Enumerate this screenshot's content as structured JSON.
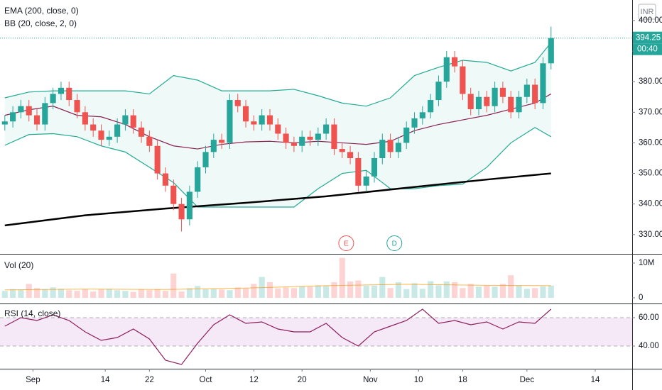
{
  "chart_data": {
    "type": "candlestick",
    "currency": "INR",
    "last_price": 394.25,
    "countdown": "00:40",
    "up_color": "#26a69a",
    "down_color": "#ef5350",
    "xlim": [
      -0.6,
      78.1
    ],
    "xticks": [
      {
        "value": 3.5,
        "label": "Sep"
      },
      {
        "value": 12.5,
        "label": "14"
      },
      {
        "value": 18,
        "label": "22"
      },
      {
        "value": 25,
        "label": "Oct"
      },
      {
        "value": 31,
        "label": "12"
      },
      {
        "value": 37,
        "label": "20"
      },
      {
        "value": 45.5,
        "label": "Nov"
      },
      {
        "value": 51.5,
        "label": "10"
      },
      {
        "value": 57,
        "label": "18"
      },
      {
        "value": 65,
        "label": "Dec"
      },
      {
        "value": 73.5,
        "label": "14"
      }
    ],
    "ylim": [
      323.7,
      406.7
    ],
    "yticks": [
      {
        "value": 330,
        "label": "330.00"
      },
      {
        "value": 340,
        "label": "340.00"
      },
      {
        "value": 350,
        "label": "350.00"
      },
      {
        "value": 360,
        "label": "360.00"
      },
      {
        "value": 370,
        "label": "370.00"
      },
      {
        "value": 380,
        "label": "380.00"
      },
      {
        "value": 390,
        "label": "390.00"
      },
      {
        "value": 400,
        "label": "400.00"
      }
    ],
    "x": [
      0,
      1,
      2,
      3,
      4,
      5,
      6,
      7,
      8,
      9,
      10,
      11,
      12,
      13,
      14,
      15,
      16,
      17,
      18,
      19,
      20,
      21,
      22,
      23,
      24,
      25,
      26,
      27,
      28,
      29,
      30,
      31,
      32,
      33,
      34,
      35,
      36,
      37,
      38,
      39,
      40,
      41,
      42,
      43,
      44,
      45,
      46,
      47,
      48,
      49,
      50,
      51,
      52,
      53,
      54,
      55,
      56,
      57,
      58,
      59,
      60,
      61,
      62,
      63,
      64,
      65,
      66,
      67,
      68
    ],
    "open": [
      366,
      367,
      370,
      372,
      369,
      366,
      373,
      376,
      378,
      374,
      370,
      366,
      364,
      361,
      362,
      366,
      369,
      365,
      362,
      359,
      350,
      346,
      340,
      335,
      344,
      352,
      357,
      361,
      360,
      374,
      372,
      367,
      366,
      369,
      366,
      363,
      360,
      359,
      362,
      361,
      363,
      366,
      358,
      357,
      355,
      346,
      349,
      355,
      361,
      357,
      360,
      365,
      368,
      370,
      374,
      380,
      388,
      385,
      376,
      371,
      375,
      372,
      378,
      375,
      370,
      375,
      379,
      373,
      386
    ],
    "high": [
      369,
      372,
      374,
      374,
      371,
      375,
      378,
      380,
      380,
      376,
      372,
      368,
      366,
      364,
      368,
      371,
      371,
      367,
      364,
      361,
      352,
      348,
      342,
      346,
      354,
      359,
      363,
      363,
      376,
      376,
      374,
      369,
      371,
      371,
      368,
      365,
      362,
      364,
      364,
      365,
      368,
      368,
      360,
      359,
      357,
      351,
      357,
      363,
      363,
      362,
      367,
      370,
      372,
      376,
      382,
      390,
      390,
      387,
      378,
      377,
      377,
      380,
      380,
      377,
      377,
      381,
      381,
      388,
      398
    ],
    "low": [
      364,
      365,
      368,
      367,
      364,
      364,
      371,
      374,
      372,
      368,
      364,
      362,
      359,
      359,
      360,
      364,
      363,
      360,
      357,
      348,
      344,
      338,
      331,
      333,
      342,
      350,
      355,
      358,
      358,
      370,
      365,
      364,
      364,
      364,
      361,
      358,
      357,
      357,
      359,
      359,
      361,
      356,
      355,
      353,
      344,
      344,
      347,
      353,
      355,
      355,
      358,
      363,
      366,
      368,
      372,
      378,
      383,
      374,
      369,
      369,
      370,
      370,
      373,
      368,
      368,
      373,
      371,
      371,
      384
    ],
    "close": [
      367,
      370,
      372,
      369,
      366,
      373,
      376,
      378,
      374,
      370,
      366,
      364,
      361,
      362,
      366,
      369,
      365,
      362,
      359,
      350,
      346,
      340,
      335,
      344,
      352,
      357,
      361,
      360,
      374,
      372,
      367,
      366,
      369,
      366,
      363,
      360,
      359,
      362,
      361,
      363,
      366,
      358,
      357,
      355,
      346,
      349,
      355,
      361,
      357,
      360,
      365,
      368,
      370,
      374,
      380,
      388,
      385,
      376,
      371,
      375,
      372,
      378,
      375,
      370,
      375,
      379,
      373,
      386,
      394.25
    ],
    "overlays": [
      {
        "name": "EMA (200, close, 0)",
        "color": "#000000",
        "x": [
          0,
          10,
          20,
          30,
          40,
          50,
          60,
          68
        ],
        "values": [
          333,
          336.3,
          338.5,
          340.4,
          342.5,
          345.3,
          348,
          350
        ]
      },
      {
        "name": "BB (20, close, 2, 0)",
        "color": "#22ab94",
        "middle_color": "#8b2252",
        "x": [
          0,
          3,
          6,
          9,
          12,
          15,
          18,
          21,
          24,
          27,
          30,
          33,
          36,
          39,
          42,
          45,
          48,
          51,
          54,
          57,
          60,
          63,
          66,
          68
        ],
        "upper": [
          374.7,
          376.6,
          377,
          377,
          377,
          377,
          376,
          382,
          380.5,
          377,
          377,
          377,
          377.5,
          375.4,
          373,
          372,
          374.7,
          382,
          384.7,
          387,
          386.3,
          383.5,
          386.3,
          392.8
        ],
        "middle": [
          369,
          370.8,
          372,
          369,
          368.5,
          366,
          362,
          359,
          358,
          359.5,
          360.3,
          360.5,
          360,
          360.5,
          360,
          359.5,
          360.5,
          364,
          366,
          367.5,
          369,
          371,
          373,
          376
        ],
        "lower": [
          359.2,
          362.7,
          363,
          362,
          359,
          357,
          352,
          347,
          339,
          339,
          339,
          339,
          339,
          345,
          350,
          351,
          345,
          345,
          346,
          346.5,
          352,
          360,
          365,
          362
        ]
      }
    ],
    "events": [
      {
        "label": "E",
        "x": 42.5,
        "color": "#ef5350"
      },
      {
        "label": "D",
        "x": 48.5,
        "color": "#26a69a"
      }
    ],
    "volume": {
      "name": "Vol (20)",
      "values": [
        2,
        2.5,
        2.3,
        4,
        2.8,
        2.5,
        3,
        2.6,
        2.2,
        2,
        2.5,
        1.8,
        2.4,
        2.6,
        2.2,
        2,
        1.7,
        2.4,
        2.2,
        2.5,
        2,
        7,
        1.8,
        2.8,
        3.4,
        2.5,
        2.6,
        2.4,
        2.2,
        3,
        2.7,
        4,
        6,
        4.5,
        2.7,
        3,
        2.8,
        3.3,
        3.2,
        3.6,
        3.4,
        4.5,
        11.5,
        4.7,
        5,
        3.5,
        3.5,
        6,
        2.8,
        4.5,
        2.5,
        4.2,
        2.6,
        4.8,
        3.6,
        4.7,
        4.5,
        2.8,
        4,
        3.2,
        3.5,
        3.2,
        4,
        6.5,
        3.5,
        2.6,
        2.8,
        3.3,
        3.5
      ],
      "ylim": [
        -1.63,
        12.24
      ],
      "yticks": [
        {
          "value": 10,
          "label": "10M"
        },
        0
      ],
      "ma": {
        "color": "#ff9800",
        "x": [
          0,
          10,
          20,
          30,
          40,
          50,
          60,
          68
        ],
        "values": [
          2.3,
          2.5,
          2.4,
          2.8,
          3.5,
          3.9,
          3.6,
          3.5
        ]
      }
    },
    "rsi": {
      "name": "RSI (14, close)",
      "color": "#8e1f5e",
      "band": [
        40,
        60
      ],
      "ylim": [
        24,
        69
      ],
      "yticks": [
        {
          "value": 40,
          "label": "40.00"
        },
        {
          "value": 60,
          "label": "60.00"
        }
      ],
      "x": [
        0,
        2,
        4,
        6,
        8,
        10,
        12,
        14,
        16,
        18,
        20,
        22,
        24,
        26,
        28,
        30,
        32,
        34,
        36,
        38,
        40,
        42,
        44,
        46,
        48,
        50,
        52,
        54,
        56,
        58,
        60,
        62,
        64,
        66,
        68
      ],
      "values": [
        54,
        60,
        58,
        62,
        58,
        50,
        44,
        46,
        52,
        45,
        30,
        27,
        42,
        55,
        62,
        56,
        57,
        52,
        50,
        50,
        56,
        46,
        40,
        50,
        54,
        58,
        66,
        56,
        58,
        55,
        57,
        52,
        57,
        56,
        66
      ]
    }
  }
}
